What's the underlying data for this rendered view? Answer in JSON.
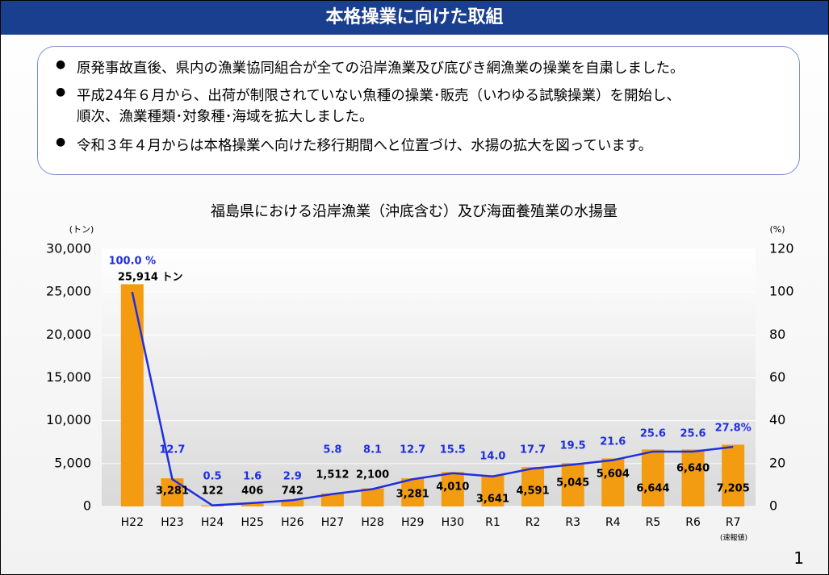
{
  "header": {
    "title": "本格操業に向けた取組"
  },
  "bullets": [
    [
      "原発事故直後、県内の漁業協同組合が全ての沿岸漁業及び底びき網漁業の操業を自粛しました。"
    ],
    [
      "平成24年６月から、出荷が制限されていない魚種の操業･販売（いわゆる試験操業）を開始し、",
      "順次、漁業種類･対象種･海域を拡大しました。"
    ],
    [
      "令和３年４月からは本格操業へ向けた移行期間へと位置づけ、水揚の拡大を図っています。"
    ]
  ],
  "page_number": "1",
  "chart_data": {
    "type": "bar",
    "title": "福島県における沿岸漁業（沖底含む）及び海面養殖業の水揚量",
    "y_label": "(トン)",
    "y2_label": "(%)",
    "categories": [
      "H22",
      "H23",
      "H24",
      "H25",
      "H26",
      "H27",
      "H28",
      "H29",
      "H30",
      "R1",
      "R2",
      "R3",
      "R4",
      "R5",
      "R6",
      "R7"
    ],
    "category_note": "(速報値)",
    "series": [
      {
        "type": "bar",
        "color": "#f39c12",
        "values": [
          25914,
          3281,
          122,
          406,
          742,
          1512,
          2100,
          3281,
          4010,
          3641,
          4591,
          5045,
          5604,
          6644,
          6640,
          7205
        ],
        "value_labels": [
          "25,914 トン",
          "3,281",
          "122",
          "406",
          "742",
          "1,512",
          "2,100",
          "3,281",
          "4,010",
          "3,641",
          "4,591",
          "5,045",
          "5,604",
          "6,644",
          "6,640",
          "7,205"
        ]
      },
      {
        "type": "line",
        "axis": "y2",
        "color": "#1f2fe0",
        "values": [
          100.0,
          12.7,
          0.5,
          1.6,
          2.9,
          5.8,
          8.1,
          12.7,
          15.5,
          14.0,
          17.7,
          19.5,
          21.6,
          25.6,
          25.6,
          27.8
        ],
        "value_labels": [
          "100.0 %",
          "12.7",
          "0.5",
          "1.6",
          "2.9",
          "5.8",
          "8.1",
          "12.7",
          "15.5",
          "14.0",
          "17.7",
          "19.5",
          "21.6",
          "25.6",
          "25.6",
          "27.8%"
        ]
      }
    ],
    "ylim": [
      0,
      30000
    ],
    "yticks": [
      {
        "value": 0,
        "label": "0"
      },
      {
        "value": 5000,
        "label": "5,000"
      },
      {
        "value": 10000,
        "label": "10,000"
      },
      {
        "value": 15000,
        "label": "15,000"
      },
      {
        "value": 20000,
        "label": "20,000"
      },
      {
        "value": 25000,
        "label": "25,000"
      },
      {
        "value": 30000,
        "label": "30,000"
      }
    ],
    "y2lim": [
      0,
      120
    ],
    "y2ticks": [
      0,
      20,
      40,
      60,
      80,
      100,
      120
    ]
  }
}
